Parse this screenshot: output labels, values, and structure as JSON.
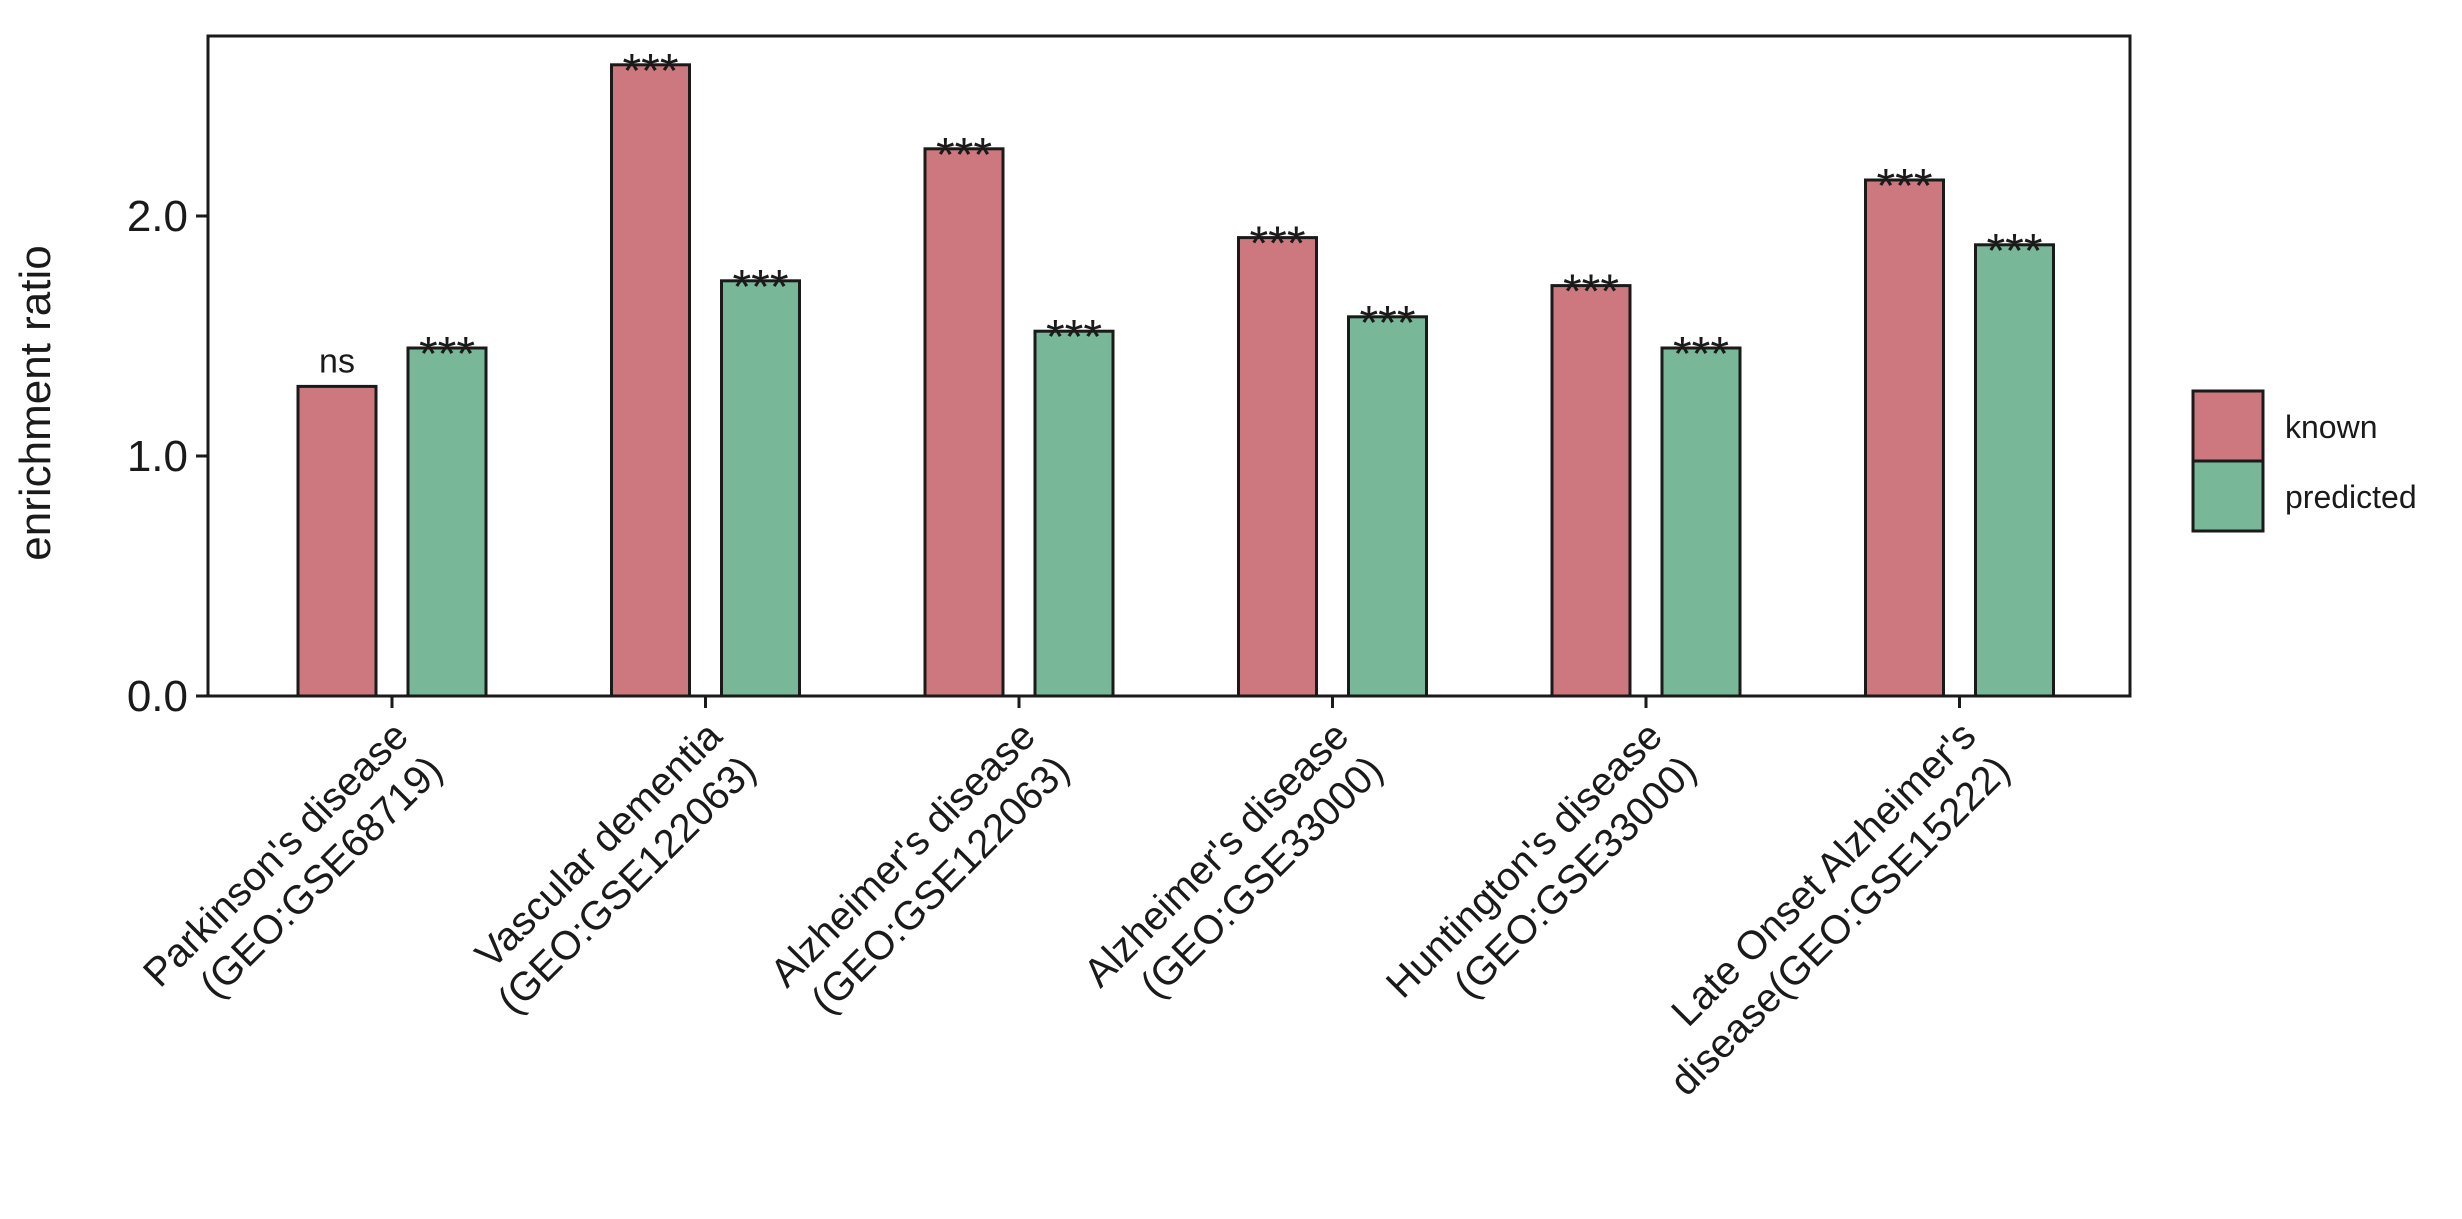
{
  "chart_data": {
    "type": "bar",
    "title": "",
    "xlabel": "",
    "ylabel": "enrichment ratio",
    "ylim": [
      0,
      2.75
    ],
    "yticks": [
      0.0,
      1.0,
      2.0
    ],
    "ytick_labels": [
      "0.0",
      "1.0",
      "2.0"
    ],
    "grid": false,
    "legend_position": "right",
    "categories": [
      [
        "Parkinson's disease",
        "(GEO:GSE68719)"
      ],
      [
        "Vascular dementia",
        "(GEO:GSE122063)"
      ],
      [
        "Alzheimer's disease",
        "(GEO:GSE122063)"
      ],
      [
        "Alzheimer's disease",
        "(GEO:GSE33000)"
      ],
      [
        "Huntington's disease",
        "(GEO:GSE33000)"
      ],
      [
        "Late Onset Alzheimer's",
        "disease(GEO:GSE15222)"
      ]
    ],
    "series": [
      {
        "name": "known",
        "color": "#cc787e",
        "values": [
          1.29,
          2.63,
          2.28,
          1.91,
          1.71,
          2.15
        ],
        "significance": [
          "ns",
          "***",
          "***",
          "***",
          "***",
          "***"
        ]
      },
      {
        "name": "predicted",
        "color": "#78b898",
        "values": [
          1.45,
          1.73,
          1.52,
          1.58,
          1.45,
          1.88
        ],
        "significance": [
          "***",
          "***",
          "***",
          "***",
          "***",
          "***"
        ]
      }
    ]
  }
}
